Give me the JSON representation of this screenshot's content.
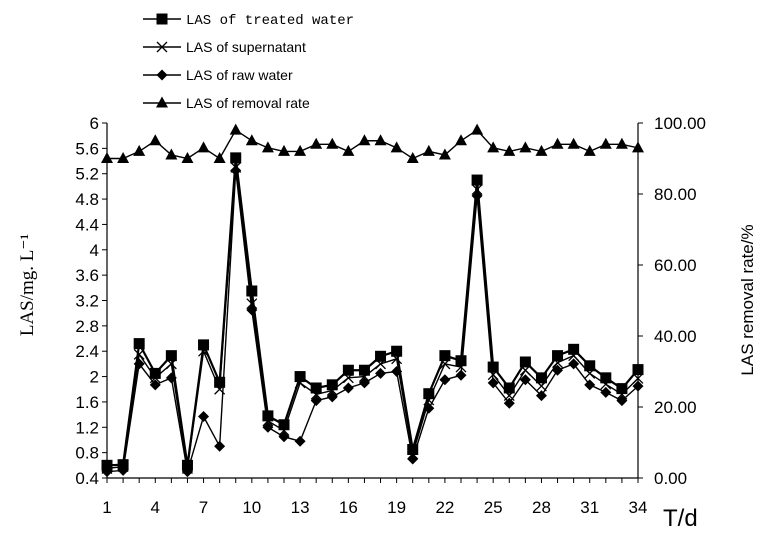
{
  "chart_data": {
    "type": "line",
    "title": "",
    "xlabel": "T/d",
    "ylabel": "LAS/mg. L⁻¹",
    "y2label": "LAS removal rate/%",
    "x": [
      1,
      2,
      3,
      4,
      5,
      6,
      7,
      8,
      9,
      10,
      11,
      12,
      13,
      14,
      15,
      16,
      17,
      18,
      19,
      20,
      21,
      22,
      23,
      24,
      25,
      26,
      27,
      28,
      29,
      30,
      31,
      32,
      33,
      34
    ],
    "xticks": [
      "1",
      "4",
      "7",
      "10",
      "13",
      "16",
      "19",
      "22",
      "25",
      "28",
      "31",
      "34"
    ],
    "xlim": [
      1,
      34
    ],
    "yticks": [
      "0.4",
      "0.8",
      "1.2",
      "1.6",
      "2",
      "2.4",
      "2.8",
      "3.2",
      "3.6",
      "4",
      "4.4",
      "4.8",
      "5.2",
      "5.6",
      "6"
    ],
    "ylim": [
      0.4,
      6
    ],
    "y2ticks": [
      "0.00",
      "20.00",
      "40.00",
      "60.00",
      "80.00",
      "100.00"
    ],
    "y2lim": [
      0,
      100
    ],
    "legend_position": "top-left",
    "series": [
      {
        "name": "LAS of treated water",
        "marker": "square",
        "axis": "left",
        "values": [
          0.6,
          0.61,
          2.52,
          2.05,
          2.33,
          0.6,
          2.5,
          1.91,
          5.45,
          3.35,
          1.38,
          1.24,
          2.0,
          1.82,
          1.87,
          2.1,
          2.1,
          2.32,
          2.4,
          0.85,
          1.73,
          2.33,
          2.25,
          5.1,
          2.15,
          1.82,
          2.23,
          1.98,
          2.33,
          2.43,
          2.17,
          1.98,
          1.81,
          2.11
        ]
      },
      {
        "name": "LAS of supernatant",
        "marker": "x",
        "axis": "left",
        "values": [
          0.55,
          0.58,
          2.35,
          1.98,
          2.2,
          0.55,
          2.4,
          1.8,
          5.3,
          3.15,
          1.3,
          1.15,
          1.9,
          1.72,
          1.78,
          1.98,
          2.0,
          2.2,
          2.28,
          0.78,
          1.63,
          2.2,
          2.15,
          4.95,
          2.03,
          1.7,
          2.1,
          1.85,
          2.22,
          2.33,
          2.05,
          1.88,
          1.72,
          1.97
        ]
      },
      {
        "name": "LAS of raw water",
        "marker": "diamond",
        "axis": "left",
        "values": [
          0.5,
          0.52,
          2.2,
          1.87,
          1.98,
          0.5,
          1.37,
          0.9,
          5.25,
          3.05,
          1.2,
          1.05,
          0.98,
          1.62,
          1.68,
          1.82,
          1.9,
          2.05,
          2.08,
          0.7,
          1.5,
          1.95,
          2.02,
          4.85,
          1.9,
          1.58,
          1.95,
          1.7,
          2.1,
          2.2,
          1.87,
          1.75,
          1.62,
          1.85
        ]
      },
      {
        "name": "LAS of removal rate",
        "marker": "triangle",
        "axis": "right",
        "values": [
          90,
          90,
          92,
          95,
          91,
          90,
          93,
          90,
          98,
          95,
          93,
          92,
          92,
          94,
          94,
          92,
          95,
          95,
          93,
          90,
          92,
          91,
          95,
          98,
          93,
          92,
          93,
          92,
          94,
          94,
          92,
          94,
          94,
          93
        ]
      }
    ]
  }
}
